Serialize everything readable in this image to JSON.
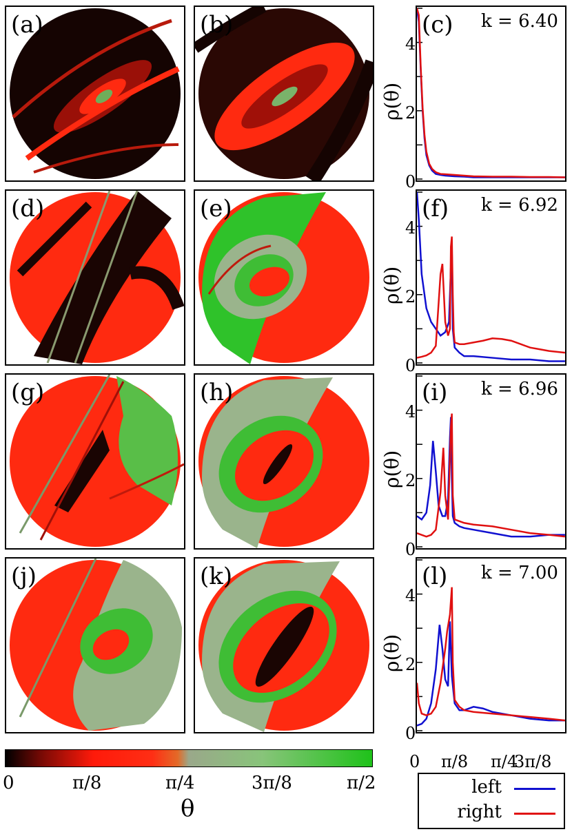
{
  "colorbar": {
    "ticks": [
      "0",
      "π/8",
      "π/4",
      "3π/8",
      "π/2"
    ],
    "label": "θ",
    "stops": [
      "#000000",
      "#ff1a0a",
      "#9aa88a",
      "#1fc21a"
    ]
  },
  "labels": {
    "a": "(a)",
    "b": "(b)",
    "c": "(c)",
    "d": "(d)",
    "e": "(e)",
    "f": "(f)",
    "g": "(g)",
    "h": "(h)",
    "i": "(i)",
    "j": "(j)",
    "k": "(k)",
    "l": "(l)"
  },
  "k_values": [
    "k = 6.40",
    "k = 6.92",
    "k = 6.96",
    "k = 7.00"
  ],
  "legend": {
    "left": "left",
    "right": "right",
    "left_color": "#1010d0",
    "right_color": "#e01010"
  },
  "chart_data": [
    {
      "type": "line",
      "title": "k = 6.40",
      "ylabel": "ρ(θ)",
      "xlabel": "",
      "xlim": [
        0,
        1.5708
      ],
      "ylim": [
        0,
        5
      ],
      "xtick_labels": [
        "0",
        "π/8",
        "π/4",
        "3π/8"
      ],
      "ytick_labels": [
        "0",
        "2",
        "4"
      ],
      "series": [
        {
          "name": "left",
          "x": [
            0.0,
            0.02,
            0.04,
            0.06,
            0.08,
            0.1,
            0.13,
            0.16,
            0.2,
            0.25,
            0.3,
            0.4,
            0.5,
            0.6,
            0.8,
            1.0,
            1.2,
            1.4,
            1.57
          ],
          "values": [
            5.0,
            4.6,
            3.2,
            2.0,
            1.2,
            0.7,
            0.4,
            0.25,
            0.15,
            0.12,
            0.1,
            0.08,
            0.07,
            0.05,
            0.05,
            0.05,
            0.05,
            0.05,
            0.05
          ]
        },
        {
          "name": "right",
          "x": [
            0.0,
            0.02,
            0.04,
            0.06,
            0.08,
            0.1,
            0.13,
            0.16,
            0.2,
            0.25,
            0.3,
            0.4,
            0.5,
            0.6,
            0.8,
            1.0,
            1.2,
            1.4,
            1.57
          ],
          "values": [
            5.0,
            4.8,
            3.3,
            2.1,
            1.3,
            0.8,
            0.45,
            0.3,
            0.2,
            0.15,
            0.14,
            0.12,
            0.1,
            0.08,
            0.07,
            0.07,
            0.06,
            0.06,
            0.05
          ]
        }
      ]
    },
    {
      "type": "line",
      "title": "k = 6.92",
      "ylabel": "ρ(θ)",
      "xlabel": "",
      "xlim": [
        0,
        1.5708
      ],
      "ylim": [
        0,
        5
      ],
      "xtick_labels": [
        "0",
        "π/8",
        "π/4",
        "3π/8"
      ],
      "ytick_labels": [
        "0",
        "2",
        "4"
      ],
      "series": [
        {
          "name": "left",
          "x": [
            0.0,
            0.02,
            0.05,
            0.1,
            0.15,
            0.2,
            0.25,
            0.3,
            0.34,
            0.36,
            0.37,
            0.38,
            0.4,
            0.45,
            0.5,
            0.6,
            0.8,
            1.0,
            1.2,
            1.4,
            1.57
          ],
          "values": [
            5.0,
            4.2,
            2.6,
            1.6,
            1.2,
            1.0,
            0.8,
            0.9,
            1.2,
            2.8,
            3.4,
            1.0,
            0.45,
            0.3,
            0.2,
            0.2,
            0.15,
            0.1,
            0.1,
            0.05,
            0.05
          ]
        },
        {
          "name": "right",
          "x": [
            0.0,
            0.05,
            0.1,
            0.15,
            0.2,
            0.25,
            0.27,
            0.3,
            0.33,
            0.35,
            0.36,
            0.37,
            0.38,
            0.39,
            0.4,
            0.45,
            0.5,
            0.6,
            0.7,
            0.8,
            0.9,
            1.0,
            1.1,
            1.2,
            1.3,
            1.4,
            1.57
          ],
          "values": [
            0.15,
            0.18,
            0.22,
            0.3,
            0.5,
            2.6,
            2.9,
            1.2,
            0.8,
            1.0,
            3.4,
            3.7,
            2.0,
            0.9,
            0.6,
            0.55,
            0.55,
            0.6,
            0.65,
            0.72,
            0.7,
            0.65,
            0.55,
            0.45,
            0.4,
            0.35,
            0.3
          ]
        }
      ]
    },
    {
      "type": "line",
      "title": "k = 6.96",
      "ylabel": "ρ(θ)",
      "xlabel": "",
      "xlim": [
        0,
        1.5708
      ],
      "ylim": [
        0,
        5
      ],
      "xtick_labels": [
        "0",
        "π/8",
        "π/4",
        "3π/8"
      ],
      "ytick_labels": [
        "0",
        "2",
        "4"
      ],
      "series": [
        {
          "name": "left",
          "x": [
            0.0,
            0.05,
            0.1,
            0.14,
            0.17,
            0.2,
            0.23,
            0.27,
            0.3,
            0.33,
            0.35,
            0.36,
            0.37,
            0.38,
            0.4,
            0.45,
            0.5,
            0.6,
            0.8,
            1.0,
            1.2,
            1.4,
            1.57
          ],
          "values": [
            0.9,
            0.8,
            1.0,
            1.8,
            3.1,
            2.2,
            1.2,
            0.9,
            0.9,
            1.4,
            3.2,
            3.8,
            2.0,
            0.9,
            0.7,
            0.6,
            0.55,
            0.5,
            0.4,
            0.3,
            0.3,
            0.35,
            0.35
          ]
        },
        {
          "name": "right",
          "x": [
            0.0,
            0.05,
            0.1,
            0.15,
            0.2,
            0.25,
            0.28,
            0.3,
            0.33,
            0.36,
            0.37,
            0.38,
            0.4,
            0.45,
            0.5,
            0.6,
            0.8,
            1.0,
            1.2,
            1.4,
            1.57
          ],
          "values": [
            0.4,
            0.35,
            0.3,
            0.35,
            0.5,
            1.6,
            2.9,
            1.5,
            0.8,
            3.5,
            3.9,
            1.5,
            0.8,
            0.75,
            0.7,
            0.65,
            0.6,
            0.5,
            0.4,
            0.35,
            0.3
          ]
        }
      ]
    },
    {
      "type": "line",
      "title": "k = 7.00",
      "ylabel": "ρ(θ)",
      "xlabel": "",
      "xlim": [
        0,
        1.5708
      ],
      "ylim": [
        0,
        5
      ],
      "xtick_labels": [
        "0",
        "π/8",
        "π/4",
        "3π/8"
      ],
      "ytick_labels": [
        "0",
        "2",
        "4"
      ],
      "series": [
        {
          "name": "left",
          "x": [
            0.0,
            0.05,
            0.1,
            0.15,
            0.2,
            0.24,
            0.27,
            0.3,
            0.33,
            0.35,
            0.37,
            0.4,
            0.45,
            0.5,
            0.6,
            0.7,
            0.8,
            1.0,
            1.2,
            1.4,
            1.57
          ],
          "values": [
            0.15,
            0.2,
            0.35,
            0.8,
            1.8,
            3.1,
            2.4,
            1.5,
            1.3,
            3.2,
            1.6,
            0.8,
            0.6,
            0.6,
            0.7,
            0.65,
            0.55,
            0.45,
            0.35,
            0.3,
            0.3
          ]
        },
        {
          "name": "right",
          "x": [
            0.0,
            0.02,
            0.05,
            0.1,
            0.15,
            0.2,
            0.25,
            0.3,
            0.32,
            0.35,
            0.37,
            0.38,
            0.4,
            0.45,
            0.5,
            0.6,
            0.8,
            1.0,
            1.2,
            1.4,
            1.57
          ],
          "values": [
            1.4,
            0.8,
            0.5,
            0.45,
            0.5,
            0.7,
            1.4,
            2.4,
            2.9,
            3.4,
            4.2,
            2.0,
            0.9,
            0.7,
            0.6,
            0.55,
            0.5,
            0.45,
            0.4,
            0.35,
            0.3
          ]
        }
      ]
    }
  ]
}
